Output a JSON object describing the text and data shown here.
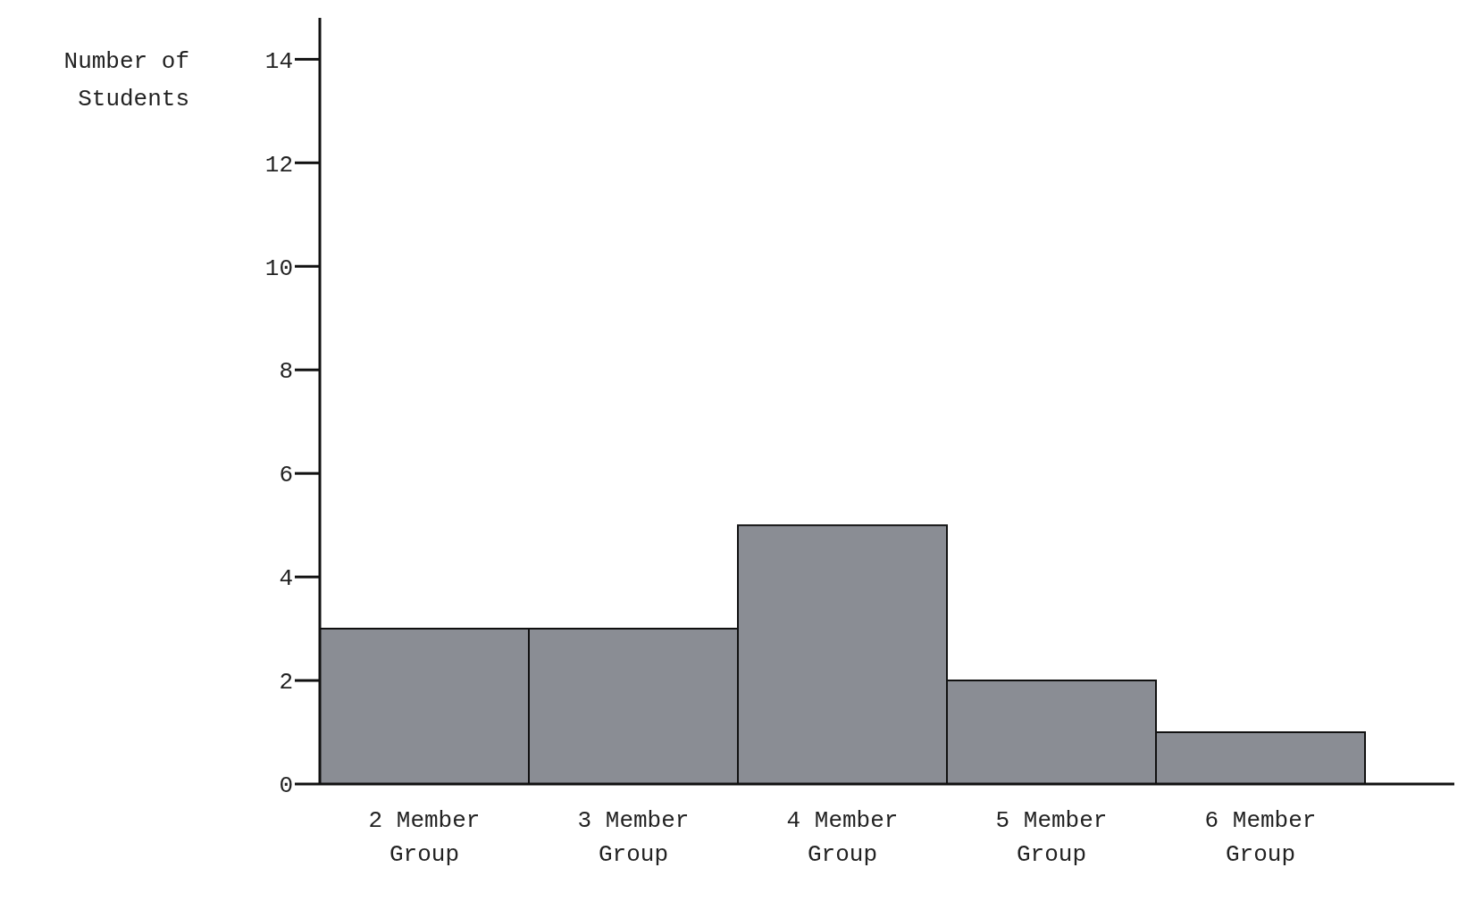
{
  "chart_data": {
    "type": "bar",
    "ylabel": "Number of Students",
    "categories": [
      "2 Member Group",
      "3 Member Group",
      "4 Member Group",
      "5 Member Group",
      "6 Member Group"
    ],
    "values": [
      3,
      3,
      5,
      2,
      1
    ],
    "color": "#8a8d94",
    "ylim": [
      0,
      14.8
    ],
    "yticks": [
      0,
      2,
      4,
      6,
      8,
      10,
      12,
      14
    ],
    "grid": false
  }
}
